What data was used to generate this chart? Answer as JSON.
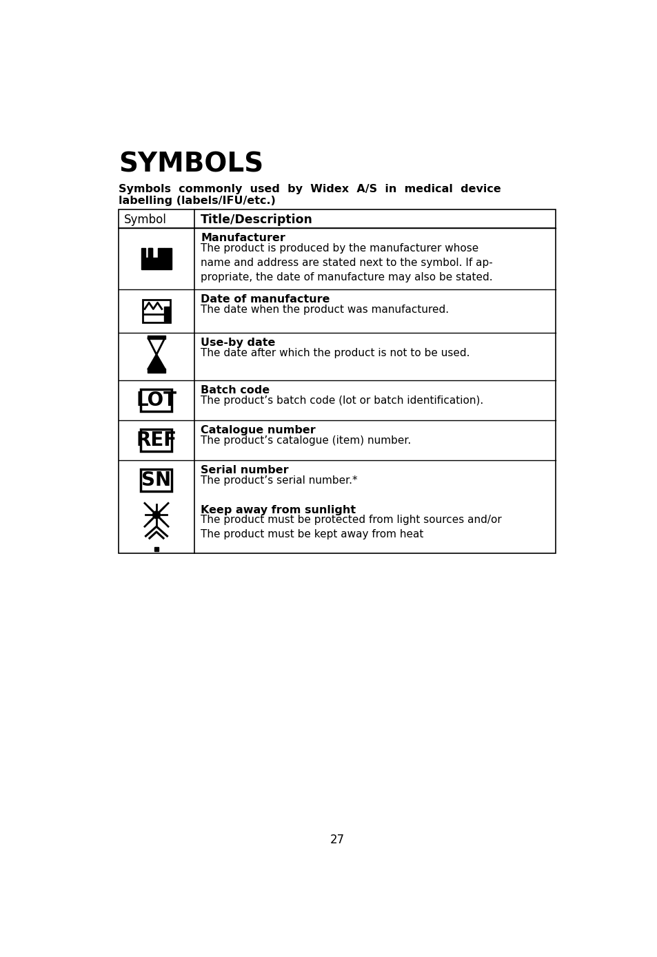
{
  "title": "SYMBOLS",
  "subtitle_line1": "Symbols  commonly  used  by  Widex  A/S  in  medical  device",
  "subtitle_line2": "labelling (labels/IFU/etc.)",
  "col1_header": "Symbol",
  "col2_header": "Title/Description",
  "rows": [
    {
      "symbol_type": "manufacturer",
      "title": "Manufacturer",
      "description": "The product is produced by the manufacturer whose\nname and address are stated next to the symbol. If ap-\npropriate, the date of manufacture may also be stated."
    },
    {
      "symbol_type": "date_manufacture",
      "title": "Date of manufacture",
      "description": "The date when the product was manufactured."
    },
    {
      "symbol_type": "use_by_date",
      "title": "Use-by date",
      "description": "The date after which the product is not to be used."
    },
    {
      "symbol_type": "lot",
      "title": "Batch code",
      "description": "The product’s batch code (lot or batch identification)."
    },
    {
      "symbol_type": "ref",
      "title": "Catalogue number",
      "description": "The product’s catalogue (item) number."
    },
    {
      "symbol_type": "sn",
      "title": "Serial number",
      "description": "The product’s serial number.*"
    },
    {
      "symbol_type": "sunlight",
      "title": "Keep away from sunlight",
      "description": "The product must be protected from light sources and/or\nThe product must be kept away from heat"
    }
  ],
  "page_number": "27",
  "bg_color": "#ffffff",
  "text_color": "#000000",
  "border_color": "#000000"
}
